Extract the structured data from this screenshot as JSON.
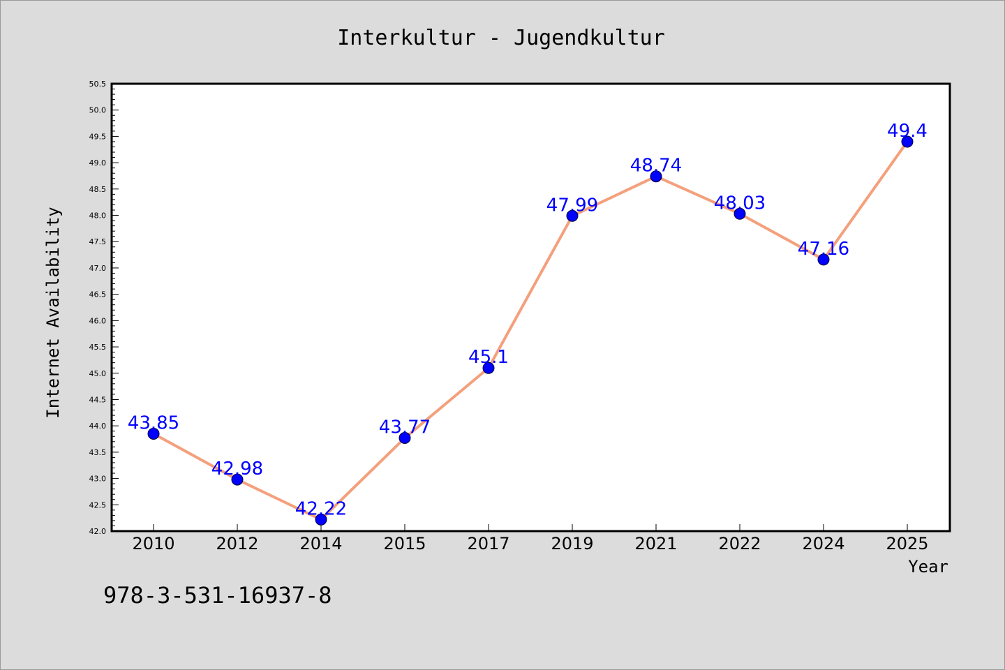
{
  "chart_data": {
    "type": "line",
    "title": "Interkultur - Jugendkultur",
    "xlabel": "Year",
    "ylabel": "Internet Availability",
    "categories": [
      "2010",
      "2012",
      "2014",
      "2015",
      "2017",
      "2019",
      "2021",
      "2022",
      "2024",
      "2025"
    ],
    "series": [
      {
        "values": [
          43.85,
          42.98,
          42.22,
          43.77,
          45.1,
          47.99,
          48.74,
          48.03,
          47.16,
          49.4
        ],
        "labels": [
          "43.85",
          "42.98",
          "42.22",
          "43.77",
          "45.1",
          "47.99",
          "48.74",
          "48.03",
          "47.16",
          "49.4"
        ],
        "line_color": "#f4a07c",
        "marker_color": "#0000ff"
      }
    ],
    "ylim": [
      42.0,
      50.5
    ],
    "yticks": [
      "42.0",
      "42.5",
      "43.0",
      "43.5",
      "44.0",
      "44.5",
      "45.0",
      "45.5",
      "46.0",
      "46.5",
      "47.0",
      "47.5",
      "48.0",
      "48.5",
      "49.0",
      "49.5",
      "50.0",
      "50.5"
    ],
    "grid": false,
    "legend": "none",
    "annotation": "978-3-531-16937-8"
  }
}
